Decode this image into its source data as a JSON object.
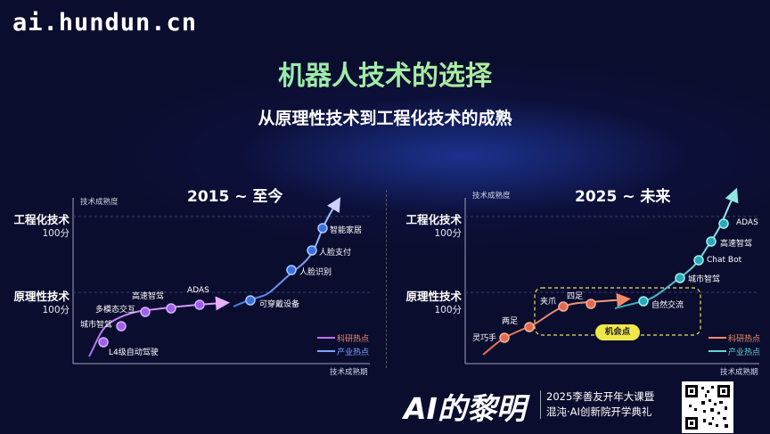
{
  "watermark": "ai.hundun.cn",
  "title": "机器人技术的选择",
  "subtitle": "从原理性技术到工程化技术的成熟",
  "left_panel": {
    "title": "2015 ~ 至今",
    "y_axis_label": "技术成熟度",
    "x_axis_label": "技术成熟期",
    "level_high": "工程化技术",
    "level_high_sub": "100分",
    "level_low": "原理性技术",
    "level_low_sub": "100分",
    "points": [
      "L4级自动驾驶",
      "城市智驾",
      "多模态交互",
      "高速智驾",
      "ADAS",
      "可穿戴设备",
      "人脸识别",
      "人脸支付",
      "智能家居"
    ],
    "legend_research": "科研热点",
    "legend_industry": "产业热点"
  },
  "right_panel": {
    "title": "2025 ~ 未来",
    "y_axis_label": "技术成熟度",
    "x_axis_label": "技术成熟期",
    "level_high": "工程化技术",
    "level_high_sub": "100分",
    "level_low": "原理性技术",
    "level_low_sub": "100分",
    "points": [
      "灵巧手",
      "两足",
      "夹爪",
      "四足",
      "自然交流",
      "城市智驾",
      "Chat Bot",
      "高速智驾",
      "ADAS"
    ],
    "opportunity": "机会点",
    "legend_research": "科研热点",
    "legend_industry": "产业热点"
  },
  "brand": "AI的黎明",
  "course_line1": "2025李善友开年大课暨",
  "course_line2": "混沌·AI创新院开学典礼",
  "colors": {
    "research": "#f08a64",
    "industry": "#5fd6d0",
    "industry_left": "#7aa8ff",
    "research_left": "#c070f0",
    "title_gradient_start": "#7ee8c0",
    "title_gradient_end": "#c6f08a"
  }
}
